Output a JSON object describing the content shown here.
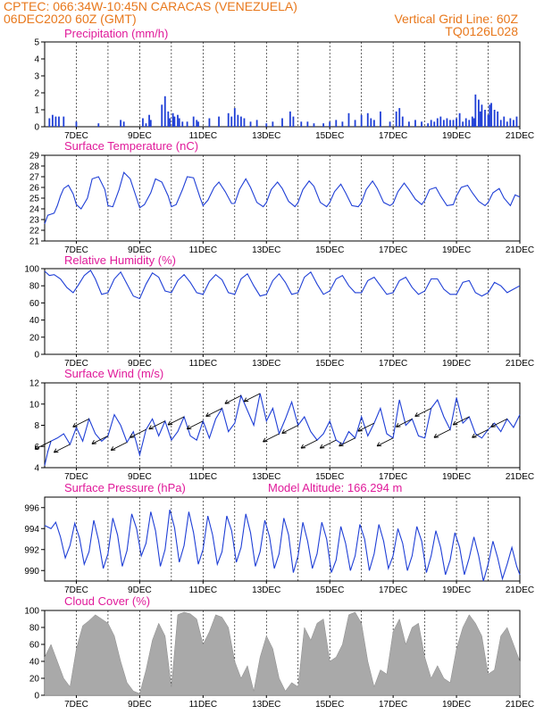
{
  "header": {
    "line1": "CPTEC:   066:34W-10:45N   CARACAS (VENEZUELA)",
    "line2": "06DEC2020 60Z (GMT)",
    "grid_note": "Vertical Grid Line: 60Z",
    "code": "TQ0126L028"
  },
  "colors": {
    "header": "#e8781c",
    "title": "#e01a9a",
    "series": "#1f3fd6",
    "cloud": "#a9a9a9"
  },
  "chart_data": [
    {
      "id": "precip",
      "type": "bar",
      "title": "Precipitation (mm/h)",
      "ylim": [
        0,
        5
      ],
      "yticks": [
        0,
        1,
        2,
        3,
        4,
        5
      ],
      "xticks": [
        "7DEC",
        "9DEC",
        "11DEC",
        "13DEC",
        "15DEC",
        "17DEC",
        "19DEC",
        "21DEC"
      ],
      "xlim": [
        6.0,
        21.0
      ],
      "x": [
        6.15,
        6.25,
        6.35,
        6.45,
        6.6,
        7.0,
        7.7,
        8.4,
        8.5,
        9.1,
        9.2,
        9.3,
        9.35,
        9.7,
        9.8,
        9.9,
        9.95,
        10.05,
        10.1,
        10.2,
        10.25,
        10.35,
        10.5,
        10.7,
        10.8,
        10.85,
        11.2,
        11.5,
        11.8,
        11.9,
        12.0,
        12.1,
        12.2,
        12.3,
        12.5,
        12.7,
        13.0,
        13.2,
        13.5,
        13.75,
        13.85,
        14.1,
        14.3,
        14.5,
        14.8,
        15.0,
        15.2,
        15.4,
        15.6,
        15.8,
        16.0,
        16.2,
        16.3,
        16.4,
        16.6,
        16.9,
        17.1,
        17.2,
        17.3,
        17.5,
        17.7,
        17.9,
        18.1,
        18.2,
        18.3,
        18.4,
        18.5,
        18.6,
        18.7,
        18.8,
        18.9,
        19.0,
        19.1,
        19.2,
        19.3,
        19.4,
        19.5,
        19.55,
        19.6,
        19.7,
        19.75,
        19.8,
        19.9,
        20.0,
        20.05,
        20.1,
        20.2,
        20.3,
        20.4,
        20.5,
        20.6,
        20.7,
        20.8,
        20.9
      ],
      "values": [
        0.5,
        0.7,
        0.6,
        0.6,
        0.6,
        0.3,
        0.2,
        0.4,
        0.3,
        0.5,
        0.2,
        0.7,
        0.4,
        1.3,
        1.8,
        0.9,
        0.5,
        0.8,
        0.6,
        0.7,
        0.5,
        0.3,
        0.3,
        0.6,
        0.4,
        0.3,
        0.5,
        0.6,
        0.8,
        0.6,
        1.1,
        0.7,
        0.6,
        0.5,
        0.3,
        0.4,
        0.2,
        0.3,
        0.5,
        0.9,
        0.6,
        0.3,
        0.3,
        0.2,
        0.2,
        0.3,
        0.4,
        0.3,
        0.8,
        0.4,
        0.7,
        0.8,
        0.5,
        0.4,
        0.9,
        0.3,
        0.9,
        1.1,
        0.6,
        0.3,
        0.4,
        0.3,
        0.2,
        0.4,
        0.3,
        0.5,
        0.6,
        0.4,
        0.5,
        0.4,
        0.4,
        0.5,
        0.8,
        0.3,
        0.5,
        0.4,
        0.6,
        0.5,
        1.9,
        1.6,
        0.9,
        1.3,
        1.0,
        0.7,
        1.3,
        1.4,
        1.0,
        0.9,
        0.4,
        0.6,
        0.3,
        0.5,
        0.4,
        0.6
      ]
    },
    {
      "id": "temp",
      "type": "line",
      "title": "Surface Temperature (nC)",
      "ylim": [
        21,
        29
      ],
      "yticks": [
        21,
        22,
        23,
        24,
        25,
        26,
        27,
        28,
        29
      ],
      "xticks": [
        "7DEC",
        "9DEC",
        "11DEC",
        "13DEC",
        "15DEC",
        "17DEC",
        "19DEC",
        "21DEC"
      ],
      "xlim": [
        6.0,
        21.0
      ],
      "x": [
        6.0,
        6.1,
        6.2,
        6.3,
        6.4,
        6.5,
        6.6,
        6.75,
        6.9,
        7.0,
        7.15,
        7.35,
        7.5,
        7.7,
        7.9,
        8.0,
        8.15,
        8.35,
        8.5,
        8.7,
        8.9,
        9.0,
        9.15,
        9.35,
        9.5,
        9.7,
        9.9,
        10.0,
        10.15,
        10.35,
        10.5,
        10.7,
        10.9,
        11.0,
        11.15,
        11.35,
        11.5,
        11.7,
        11.9,
        12.0,
        12.15,
        12.35,
        12.5,
        12.7,
        12.9,
        13.0,
        13.15,
        13.35,
        13.5,
        13.7,
        13.9,
        14.0,
        14.15,
        14.35,
        14.5,
        14.7,
        14.9,
        15.0,
        15.15,
        15.35,
        15.5,
        15.7,
        15.9,
        16.0,
        16.15,
        16.35,
        16.5,
        16.7,
        16.9,
        17.0,
        17.15,
        17.35,
        17.5,
        17.7,
        17.9,
        18.0,
        18.15,
        18.35,
        18.5,
        18.7,
        18.9,
        19.0,
        19.15,
        19.35,
        19.5,
        19.7,
        19.9,
        20.0,
        20.15,
        20.35,
        20.5,
        20.7,
        20.85,
        21.0
      ],
      "values": [
        22.6,
        23.4,
        23.5,
        23.6,
        24.3,
        25.2,
        25.9,
        26.2,
        25.4,
        24.4,
        24.0,
        25.0,
        26.8,
        27.0,
        25.8,
        24.3,
        24.2,
        25.8,
        27.4,
        26.8,
        25.0,
        24.1,
        24.4,
        25.5,
        26.8,
        26.5,
        25.2,
        24.2,
        24.4,
        25.8,
        27.0,
        26.9,
        25.1,
        24.3,
        24.8,
        26.0,
        26.5,
        25.6,
        24.5,
        24.5,
        25.8,
        26.8,
        26.0,
        24.6,
        24.2,
        24.6,
        25.8,
        26.5,
        25.9,
        24.7,
        24.2,
        24.6,
        25.8,
        26.6,
        26.1,
        24.6,
        24.2,
        24.6,
        25.6,
        26.3,
        25.5,
        24.3,
        24.2,
        24.6,
        25.8,
        26.6,
        25.9,
        24.6,
        24.3,
        24.5,
        25.6,
        26.4,
        25.8,
        24.9,
        24.4,
        24.8,
        25.8,
        26.0,
        25.2,
        24.3,
        24.4,
        25.2,
        26.0,
        26.2,
        25.5,
        24.7,
        24.3,
        24.6,
        25.5,
        25.9,
        25.0,
        24.3,
        25.3,
        25.1
      ]
    },
    {
      "id": "rh",
      "type": "line",
      "title": "Relative Humidity (%)",
      "ylim": [
        0,
        100
      ],
      "yticks": [
        0,
        20,
        40,
        60,
        80,
        100
      ],
      "xticks": [
        "7DEC",
        "9DEC",
        "11DEC",
        "13DEC",
        "15DEC",
        "17DEC",
        "19DEC",
        "21DEC"
      ],
      "xlim": [
        6.0,
        21.0
      ],
      "x": [
        6.0,
        6.15,
        6.3,
        6.5,
        6.7,
        6.9,
        7.05,
        7.25,
        7.45,
        7.6,
        7.8,
        8.0,
        8.2,
        8.4,
        8.6,
        8.8,
        9.0,
        9.2,
        9.4,
        9.6,
        9.8,
        10.0,
        10.2,
        10.4,
        10.6,
        10.8,
        11.0,
        11.2,
        11.4,
        11.6,
        11.8,
        12.0,
        12.2,
        12.4,
        12.6,
        12.8,
        13.0,
        13.2,
        13.4,
        13.6,
        13.8,
        14.0,
        14.2,
        14.4,
        14.6,
        14.8,
        15.0,
        15.2,
        15.4,
        15.6,
        15.8,
        16.0,
        16.2,
        16.4,
        16.6,
        16.8,
        17.0,
        17.2,
        17.4,
        17.6,
        17.8,
        18.0,
        18.2,
        18.4,
        18.6,
        18.8,
        19.0,
        19.2,
        19.4,
        19.6,
        19.8,
        20.0,
        20.2,
        20.4,
        20.6,
        20.8,
        21.0
      ],
      "values": [
        97,
        92,
        93,
        88,
        78,
        72,
        80,
        92,
        98,
        88,
        70,
        72,
        88,
        96,
        82,
        68,
        65,
        82,
        95,
        90,
        74,
        72,
        86,
        93,
        84,
        72,
        70,
        85,
        93,
        87,
        72,
        70,
        88,
        94,
        80,
        68,
        70,
        86,
        94,
        84,
        70,
        72,
        90,
        96,
        82,
        70,
        74,
        88,
        92,
        80,
        72,
        72,
        86,
        90,
        80,
        70,
        72,
        86,
        90,
        78,
        70,
        74,
        88,
        88,
        76,
        70,
        70,
        84,
        86,
        72,
        68,
        72,
        84,
        80,
        72,
        76,
        80
      ]
    },
    {
      "id": "wind",
      "type": "line",
      "title": "Surface Wind (m/s)",
      "ylim": [
        4,
        12
      ],
      "yticks": [
        4,
        6,
        8,
        10,
        12
      ],
      "xticks": [
        "7DEC",
        "9DEC",
        "11DEC",
        "13DEC",
        "15DEC",
        "17DEC",
        "19DEC",
        "21DEC"
      ],
      "xlim": [
        6.0,
        21.0
      ],
      "x": [
        6.0,
        6.1,
        6.2,
        6.4,
        6.6,
        6.8,
        7.0,
        7.2,
        7.4,
        7.6,
        7.8,
        8.0,
        8.2,
        8.4,
        8.6,
        8.8,
        9.0,
        9.2,
        9.4,
        9.6,
        9.8,
        10.0,
        10.2,
        10.4,
        10.6,
        10.8,
        11.0,
        11.2,
        11.4,
        11.6,
        11.8,
        12.0,
        12.2,
        12.4,
        12.6,
        12.8,
        13.0,
        13.2,
        13.4,
        13.6,
        13.8,
        14.0,
        14.2,
        14.4,
        14.6,
        14.8,
        15.0,
        15.2,
        15.4,
        15.6,
        15.8,
        16.0,
        16.2,
        16.4,
        16.6,
        16.8,
        17.0,
        17.2,
        17.4,
        17.6,
        17.8,
        18.0,
        18.2,
        18.4,
        18.6,
        18.8,
        19.0,
        19.2,
        19.4,
        19.6,
        19.8,
        20.0,
        20.2,
        20.4,
        20.6,
        20.8,
        21.0
      ],
      "values": [
        4.2,
        5.5,
        6.5,
        6.8,
        7.2,
        6.2,
        7.8,
        6.5,
        8.6,
        7.2,
        6.5,
        7.0,
        9.0,
        8.0,
        6.4,
        7.4,
        5.2,
        7.6,
        8.6,
        7.0,
        8.4,
        6.6,
        7.4,
        8.8,
        7.0,
        6.6,
        8.4,
        6.8,
        8.6,
        9.6,
        7.4,
        8.2,
        10.8,
        9.4,
        8.0,
        11.0,
        8.4,
        9.6,
        7.2,
        8.6,
        10.2,
        8.0,
        8.8,
        7.4,
        6.6,
        7.2,
        8.4,
        6.6,
        6.2,
        7.4,
        6.8,
        8.8,
        7.0,
        8.2,
        9.6,
        7.2,
        6.8,
        10.4,
        8.0,
        8.6,
        7.0,
        6.8,
        9.6,
        10.4,
        8.8,
        7.6,
        10.6,
        8.2,
        8.8,
        7.2,
        6.8,
        7.6,
        8.2,
        7.4,
        8.6,
        7.8,
        9.0
      ]
    },
    {
      "id": "pres",
      "type": "line",
      "title": "Surface Pressure (hPa)",
      "annotation": "Model Altitude: 166.294 m",
      "ylim": [
        989,
        997
      ],
      "yticks": [
        990,
        992,
        994,
        996
      ],
      "xticks": [
        "7DEC",
        "9DEC",
        "11DEC",
        "13DEC",
        "15DEC",
        "17DEC",
        "19DEC",
        "21DEC"
      ],
      "xlim": [
        6.0,
        21.0
      ],
      "x": [
        6.0,
        6.2,
        6.35,
        6.5,
        6.65,
        6.8,
        6.95,
        7.1,
        7.25,
        7.4,
        7.55,
        7.7,
        7.85,
        8.0,
        8.15,
        8.3,
        8.45,
        8.6,
        8.75,
        8.9,
        9.05,
        9.2,
        9.35,
        9.5,
        9.65,
        9.8,
        9.95,
        10.1,
        10.25,
        10.4,
        10.55,
        10.7,
        10.85,
        11.0,
        11.15,
        11.3,
        11.45,
        11.6,
        11.75,
        11.9,
        12.05,
        12.2,
        12.35,
        12.5,
        12.65,
        12.8,
        12.95,
        13.1,
        13.25,
        13.4,
        13.55,
        13.7,
        13.85,
        14.0,
        14.15,
        14.3,
        14.45,
        14.6,
        14.75,
        14.9,
        15.05,
        15.2,
        15.35,
        15.5,
        15.65,
        15.8,
        15.95,
        16.1,
        16.25,
        16.4,
        16.55,
        16.7,
        16.85,
        17.0,
        17.15,
        17.3,
        17.45,
        17.6,
        17.75,
        17.9,
        18.05,
        18.2,
        18.35,
        18.5,
        18.65,
        18.8,
        18.95,
        19.1,
        19.25,
        19.4,
        19.55,
        19.7,
        19.85,
        20.0,
        20.15,
        20.3,
        20.45,
        20.6,
        20.75,
        20.9,
        21.0
      ],
      "values": [
        994.3,
        994.0,
        994.6,
        993.2,
        991.2,
        992.4,
        994.5,
        993.1,
        990.6,
        991.8,
        994.8,
        992.9,
        990.2,
        991.6,
        995.0,
        993.4,
        990.4,
        991.9,
        995.4,
        994.0,
        991.4,
        992.6,
        995.6,
        993.8,
        990.4,
        992.0,
        995.8,
        994.1,
        990.8,
        992.4,
        995.6,
        993.6,
        990.6,
        992.0,
        995.2,
        993.4,
        990.6,
        991.8,
        995.2,
        993.8,
        990.8,
        992.2,
        995.4,
        993.6,
        990.4,
        991.8,
        994.8,
        993.2,
        990.2,
        991.6,
        995.0,
        993.4,
        989.8,
        991.4,
        994.6,
        992.8,
        990.2,
        991.6,
        994.6,
        993.0,
        989.8,
        991.0,
        994.2,
        992.6,
        990.0,
        991.4,
        994.4,
        993.0,
        990.0,
        991.6,
        994.4,
        992.8,
        990.2,
        991.4,
        994.0,
        992.6,
        990.0,
        991.4,
        994.2,
        992.8,
        989.8,
        991.4,
        993.8,
        992.2,
        989.6,
        991.0,
        993.6,
        992.2,
        989.6,
        991.2,
        993.2,
        991.4,
        989.0,
        990.6,
        992.8,
        991.2,
        989.2,
        990.6,
        992.2,
        990.4,
        989.6
      ]
    },
    {
      "id": "cloud",
      "type": "area",
      "title": "Cloud Cover (%)",
      "ylim": [
        0,
        100
      ],
      "yticks": [
        0,
        20,
        40,
        60,
        80,
        100
      ],
      "xticks": [
        "7DEC",
        "9DEC",
        "11DEC",
        "13DEC",
        "15DEC",
        "17DEC",
        "19DEC",
        "21DEC"
      ],
      "xlim": [
        6.0,
        21.0
      ],
      "x": [
        6.0,
        6.2,
        6.4,
        6.6,
        6.8,
        7.0,
        7.2,
        7.4,
        7.6,
        7.8,
        8.0,
        8.2,
        8.4,
        8.6,
        8.8,
        9.0,
        9.2,
        9.4,
        9.6,
        9.8,
        10.0,
        10.2,
        10.4,
        10.6,
        10.8,
        11.0,
        11.2,
        11.4,
        11.6,
        11.8,
        12.0,
        12.2,
        12.4,
        12.6,
        12.8,
        13.0,
        13.2,
        13.4,
        13.6,
        13.8,
        14.0,
        14.2,
        14.4,
        14.6,
        14.8,
        15.0,
        15.2,
        15.4,
        15.6,
        15.8,
        16.0,
        16.2,
        16.4,
        16.6,
        16.8,
        17.0,
        17.2,
        17.4,
        17.6,
        17.8,
        18.0,
        18.2,
        18.4,
        18.6,
        18.8,
        19.0,
        19.2,
        19.4,
        19.6,
        19.8,
        20.0,
        20.2,
        20.4,
        20.6,
        20.8,
        21.0
      ],
      "values": [
        45,
        60,
        40,
        20,
        10,
        55,
        82,
        88,
        95,
        90,
        85,
        70,
        40,
        15,
        5,
        2,
        30,
        65,
        85,
        70,
        10,
        95,
        98,
        96,
        90,
        60,
        75,
        95,
        92,
        80,
        40,
        20,
        35,
        5,
        45,
        70,
        55,
        20,
        5,
        15,
        10,
        80,
        65,
        85,
        90,
        40,
        45,
        60,
        95,
        98,
        85,
        40,
        10,
        30,
        25,
        75,
        90,
        60,
        80,
        85,
        45,
        20,
        35,
        20,
        15,
        55,
        80,
        95,
        85,
        70,
        25,
        30,
        70,
        80,
        60,
        40
      ]
    }
  ]
}
